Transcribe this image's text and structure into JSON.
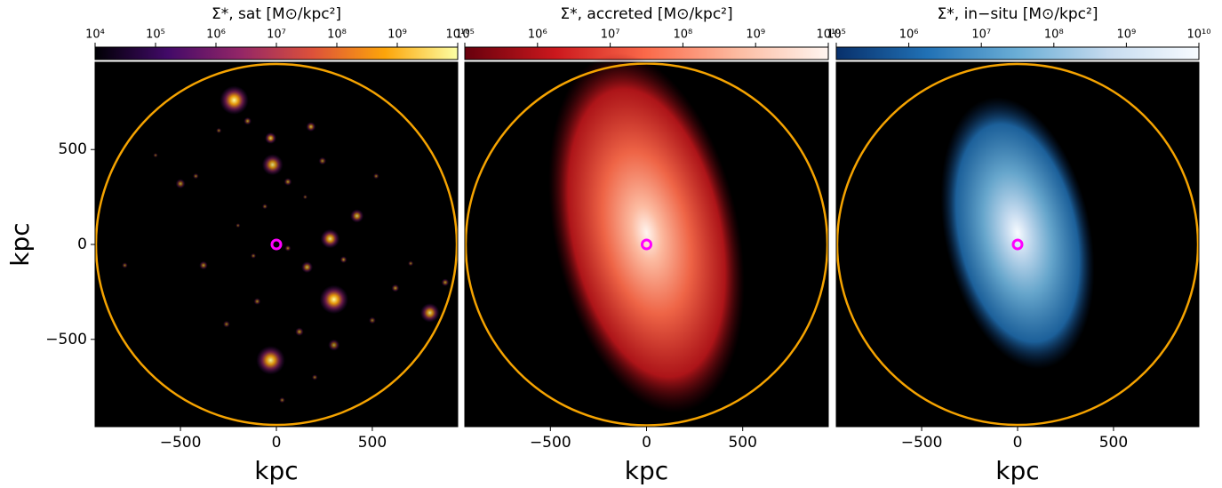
{
  "chart_data": [
    {
      "type": "image",
      "title": "Σ*, sat [M⊙/kpc²]",
      "log": true,
      "cmap": [
        "#000004",
        "#420a68",
        "#932667",
        "#dd513a",
        "#fca50a",
        "#fcffa4"
      ],
      "clim": [
        10000,
        10000000000
      ],
      "cticks": [
        {
          "value": 10000,
          "label": "10⁴"
        },
        {
          "value": 100000,
          "label": "10⁵"
        },
        {
          "value": 1000000,
          "label": "10⁶"
        },
        {
          "value": 10000000,
          "label": "10⁷"
        },
        {
          "value": 100000000,
          "label": "10⁸"
        },
        {
          "value": 1000000000,
          "label": "10⁹"
        },
        {
          "value": 10000000000,
          "label": "10¹⁰"
        }
      ],
      "xlim": [
        -945,
        945
      ],
      "ylim": [
        -960,
        960
      ],
      "xticks": [
        {
          "value": -500,
          "label": "−500"
        },
        0,
        500
      ],
      "yticks": [
        {
          "value": -500,
          "label": "−500"
        },
        0,
        500
      ],
      "xlabel": "kpc",
      "ylabel": "kpc"
    },
    {
      "type": "image",
      "title": "Σ*, accreted [M⊙/kpc²]",
      "log": true,
      "cmap": [
        "#67000d",
        "#cb181d",
        "#fb6a4a",
        "#fcbba1",
        "#fff5f0"
      ],
      "clim": [
        100000,
        10000000000
      ],
      "cticks": [
        {
          "value": 100000,
          "label": "10⁵"
        },
        {
          "value": 1000000,
          "label": "10⁶"
        },
        {
          "value": 10000000,
          "label": "10⁷"
        },
        {
          "value": 100000000,
          "label": "10⁸"
        },
        {
          "value": 1000000000,
          "label": "10⁹"
        },
        {
          "value": 10000000000,
          "label": "10¹⁰"
        }
      ],
      "xlim": [
        -945,
        945
      ],
      "ylim": [
        -960,
        960
      ],
      "xticks": [
        {
          "value": -500,
          "label": "−500"
        },
        0,
        500
      ],
      "xlabel": "kpc"
    },
    {
      "type": "image",
      "title": "Σ*, in−situ [M⊙/kpc²]",
      "log": true,
      "cmap": [
        "#08306b",
        "#2171b5",
        "#6baed6",
        "#c6dbef",
        "#f7fbff"
      ],
      "clim": [
        100000,
        10000000000
      ],
      "cticks": [
        {
          "value": 100000,
          "label": "10⁵"
        },
        {
          "value": 1000000,
          "label": "10⁶"
        },
        {
          "value": 10000000,
          "label": "10⁷"
        },
        {
          "value": 100000000,
          "label": "10⁸"
        },
        {
          "value": 1000000000,
          "label": "10⁹"
        },
        {
          "value": 10000000000,
          "label": "10¹⁰"
        }
      ],
      "xlim": [
        -945,
        945
      ],
      "ylim": [
        -960,
        960
      ],
      "xticks": [
        {
          "value": -500,
          "label": "−500"
        },
        0,
        500
      ],
      "xlabel": "kpc"
    }
  ]
}
